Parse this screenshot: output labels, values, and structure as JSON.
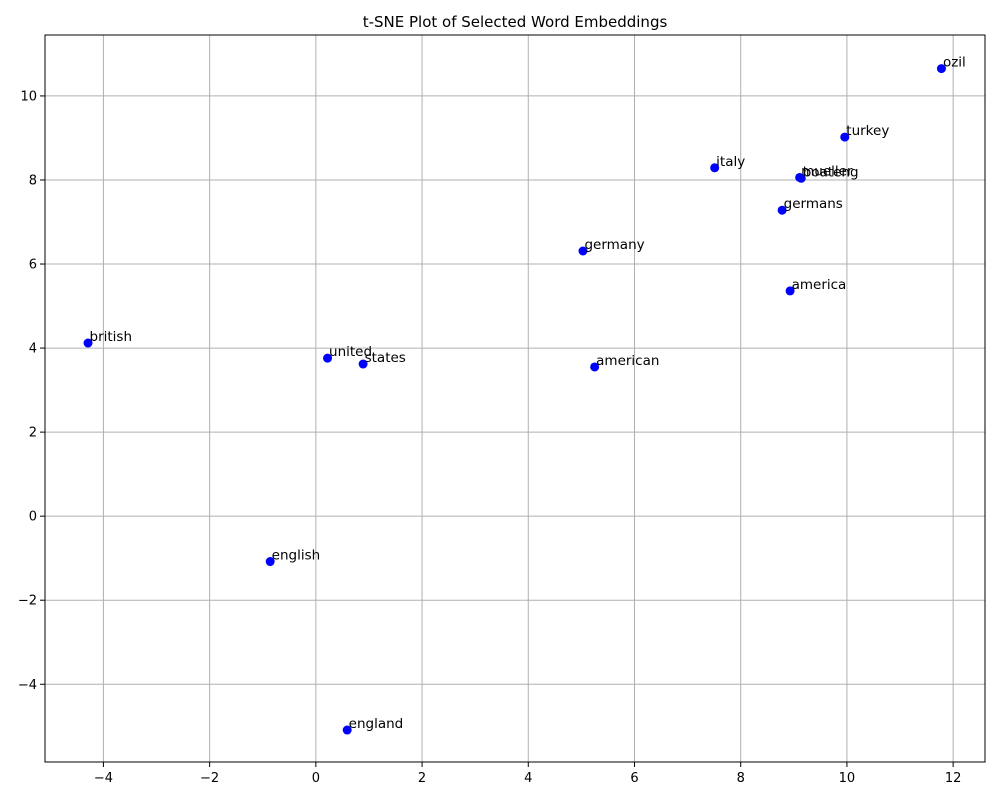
{
  "chart_data": {
    "type": "scatter",
    "title": "t-SNE Plot of Selected Word Embeddings",
    "xlabel": "",
    "ylabel": "",
    "xlim": [
      -5.1,
      12.6
    ],
    "ylim": [
      -5.85,
      11.45
    ],
    "x_ticks": [
      -4,
      -2,
      0,
      2,
      4,
      6,
      8,
      10,
      12
    ],
    "y_ticks": [
      -4,
      -2,
      0,
      2,
      4,
      6,
      8,
      10
    ],
    "grid": true,
    "marker_color": "#0000ff",
    "points": [
      {
        "label": "ozil",
        "x": 11.78,
        "y": 10.65
      },
      {
        "label": "turkey",
        "x": 9.96,
        "y": 9.02
      },
      {
        "label": "italy",
        "x": 7.51,
        "y": 8.29
      },
      {
        "label": "mueller",
        "x": 9.11,
        "y": 8.06
      },
      {
        "label": "boateng",
        "x": 9.14,
        "y": 8.04
      },
      {
        "label": "germans",
        "x": 8.78,
        "y": 7.28
      },
      {
        "label": "germany",
        "x": 5.03,
        "y": 6.31
      },
      {
        "label": "america",
        "x": 8.93,
        "y": 5.36
      },
      {
        "label": "british",
        "x": -4.29,
        "y": 4.12
      },
      {
        "label": "united",
        "x": 0.22,
        "y": 3.76
      },
      {
        "label": "states",
        "x": 0.89,
        "y": 3.62
      },
      {
        "label": "american",
        "x": 5.25,
        "y": 3.55
      },
      {
        "label": "english",
        "x": -0.86,
        "y": -1.08
      },
      {
        "label": "england",
        "x": 0.59,
        "y": -5.09
      }
    ]
  }
}
